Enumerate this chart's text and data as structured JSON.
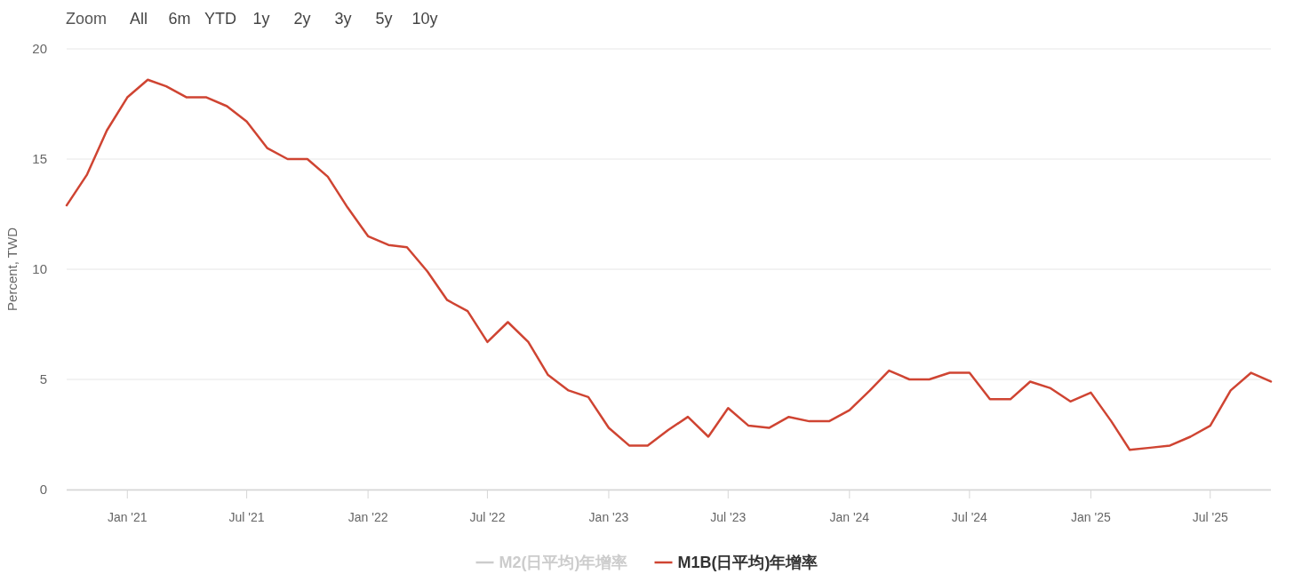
{
  "chart_data": {
    "type": "line",
    "ylabel": "Percent, TWD",
    "annotations": [
      "Zoom",
      "All",
      "6m",
      "YTD",
      "1y",
      "2y",
      "3y",
      "5y",
      "10y"
    ],
    "x": [
      "2020-10",
      "2020-11",
      "2020-12",
      "2021-01",
      "2021-02",
      "2021-03",
      "2021-04",
      "2021-05",
      "2021-06",
      "2021-07",
      "2021-08",
      "2021-09",
      "2021-10",
      "2021-11",
      "2021-12",
      "2022-01",
      "2022-02",
      "2022-03",
      "2022-04",
      "2022-05",
      "2022-06",
      "2022-07",
      "2022-08",
      "2022-09",
      "2022-10",
      "2022-11",
      "2022-12",
      "2023-01",
      "2023-02",
      "2023-03",
      "2023-04",
      "2023-05",
      "2023-06",
      "2023-07",
      "2023-08",
      "2023-09",
      "2023-10",
      "2023-11",
      "2023-12",
      "2024-01",
      "2024-02",
      "2024-03",
      "2024-04",
      "2024-05",
      "2024-06",
      "2024-07",
      "2024-08",
      "2024-09",
      "2024-10",
      "2024-11",
      "2024-12",
      "2025-01",
      "2025-02",
      "2025-03",
      "2025-04",
      "2025-05",
      "2025-06",
      "2025-07",
      "2025-08",
      "2025-09",
      "2025-10"
    ],
    "series": [
      {
        "name": "M2(日平均)年增率",
        "color": "#cccccc",
        "values": [
          null,
          null,
          null,
          null,
          null,
          null,
          null,
          null,
          null,
          null,
          null,
          null,
          null,
          null,
          null,
          null,
          null,
          null,
          null,
          null,
          null,
          null,
          null,
          null,
          null,
          null,
          null,
          null,
          null,
          null,
          null,
          null,
          null,
          null,
          null,
          null,
          null,
          null,
          null,
          null,
          null,
          null,
          null,
          null,
          null,
          null,
          null,
          null,
          null,
          null,
          null,
          null,
          null,
          null,
          null,
          null,
          null,
          null,
          null,
          null,
          null
        ]
      },
      {
        "name": "M1B(日平均)年增率",
        "color": "#cf4432",
        "values": [
          12.9,
          14.3,
          16.3,
          17.8,
          18.6,
          18.3,
          17.8,
          17.8,
          17.4,
          16.7,
          15.5,
          15.0,
          15.0,
          14.2,
          12.8,
          11.5,
          11.1,
          11.0,
          9.9,
          8.6,
          8.1,
          6.7,
          7.6,
          6.7,
          5.2,
          4.5,
          4.2,
          2.8,
          2.0,
          2.0,
          2.7,
          3.3,
          2.4,
          3.7,
          2.9,
          2.8,
          3.3,
          3.1,
          3.1,
          3.6,
          4.5,
          5.4,
          5.0,
          5.0,
          5.3,
          5.3,
          4.1,
          4.1,
          4.9,
          4.6,
          4.0,
          4.4,
          3.1,
          1.8,
          1.9,
          2.0,
          2.4,
          2.9,
          4.5,
          5.3,
          4.9
        ]
      }
    ],
    "xlim": [
      "2020-10",
      "2025-10"
    ],
    "xticks": [
      {
        "value": "2021-01",
        "label": "Jan '21"
      },
      {
        "value": "2021-07",
        "label": "Jul '21"
      },
      {
        "value": "2022-01",
        "label": "Jan '22"
      },
      {
        "value": "2022-07",
        "label": "Jul '22"
      },
      {
        "value": "2023-01",
        "label": "Jan '23"
      },
      {
        "value": "2023-07",
        "label": "Jul '23"
      },
      {
        "value": "2024-01",
        "label": "Jan '24"
      },
      {
        "value": "2024-07",
        "label": "Jul '24"
      },
      {
        "value": "2025-01",
        "label": "Jan '25"
      },
      {
        "value": "2025-07",
        "label": "Jul '25"
      }
    ],
    "ylim": [
      0,
      20
    ],
    "yticks": [
      0,
      5,
      10,
      15,
      20
    ],
    "grid": "y",
    "legend": "bottom"
  }
}
